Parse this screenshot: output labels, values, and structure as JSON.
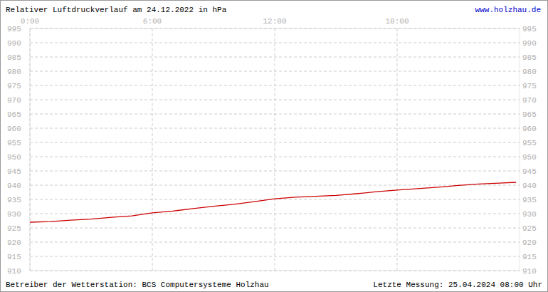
{
  "chart_data": {
    "type": "line",
    "title": "Relativer Luftdruckverlauf am 24.12.2022 in hPa",
    "source": "www.holzhau.de",
    "footer_left": "Betreiber der Wetterstation: BCS Computersysteme Holzhau",
    "footer_right": "Letzte Messung: 25.04.2024 08:00 Uhr",
    "x": [
      0,
      1,
      2,
      3,
      4,
      5,
      6,
      7,
      8,
      9,
      10,
      11,
      12,
      13,
      14,
      15,
      16,
      17,
      18,
      19,
      20,
      21,
      22,
      23,
      23.83
    ],
    "series": [
      {
        "name": "Luftdruck",
        "color": "#cc0000",
        "values": [
          927.0,
          927.2,
          927.7,
          928.1,
          928.7,
          929.2,
          930.3,
          930.9,
          931.8,
          932.6,
          933.3,
          934.2,
          935.2,
          935.8,
          936.1,
          936.4,
          937.0,
          937.7,
          938.3,
          938.8,
          939.3,
          939.9,
          940.4,
          940.7,
          941.0
        ]
      }
    ],
    "xlim": [
      0,
      24
    ],
    "xticks": [
      {
        "value": 0,
        "label": "0:00"
      },
      {
        "value": 6,
        "label": "6:00"
      },
      {
        "value": 12,
        "label": "12:00"
      },
      {
        "value": 18,
        "label": "18:00"
      }
    ],
    "ylim": [
      910,
      995
    ],
    "yticks": [
      910,
      915,
      920,
      925,
      930,
      935,
      940,
      945,
      950,
      955,
      960,
      965,
      970,
      975,
      980,
      985,
      990,
      995
    ],
    "grid": true
  }
}
